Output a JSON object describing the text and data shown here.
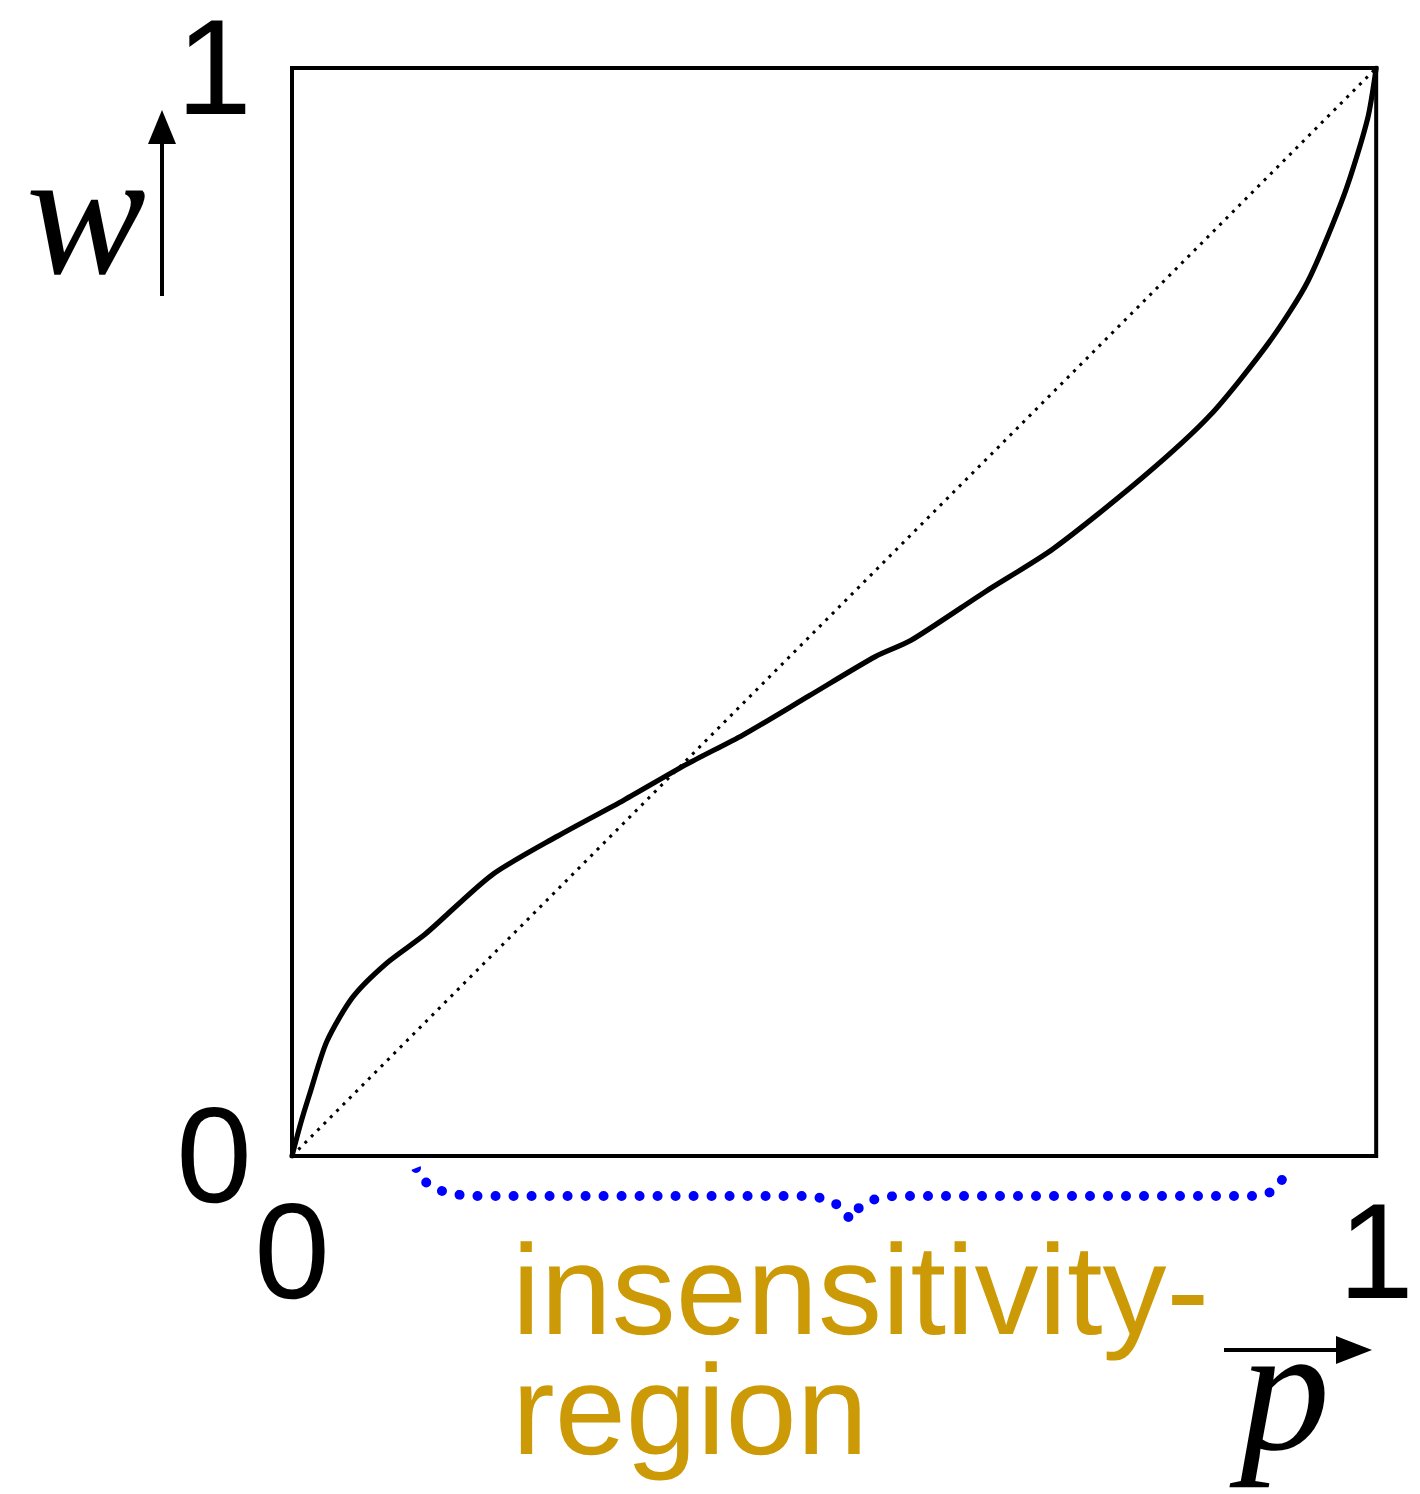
{
  "chart_data": {
    "type": "line",
    "xlabel": "p",
    "ylabel": "w",
    "annotations": [
      "insensitivity-region"
    ],
    "xlim": [
      0,
      1
    ],
    "ylim": [
      0,
      1
    ],
    "xticks": [
      0,
      1
    ],
    "yticks": [
      0,
      1
    ],
    "marker": "none",
    "line_style": "solid",
    "series": [
      {
        "color": "#000000",
        "x": [
          0,
          0.008,
          0.016,
          0.032,
          0.056,
          0.087,
          0.123,
          0.184,
          0.245,
          0.306,
          0.364,
          0.416,
          0.477,
          0.538,
          0.571,
          0.64,
          0.702,
          0.785,
          0.847,
          0.902,
          0.937,
          0.971,
          0.992,
          1
        ],
        "values": [
          0,
          0.03,
          0.056,
          0.105,
          0.146,
          0.177,
          0.204,
          0.258,
          0.294,
          0.327,
          0.36,
          0.387,
          0.423,
          0.459,
          0.474,
          0.519,
          0.558,
          0.624,
          0.681,
          0.749,
          0.804,
          0.885,
          0.953,
          1
        ]
      },
      {
        "color": "#000000",
        "line_style": "dotted",
        "x": [
          0,
          1
        ],
        "values": [
          0,
          1
        ]
      }
    ]
  }
}
